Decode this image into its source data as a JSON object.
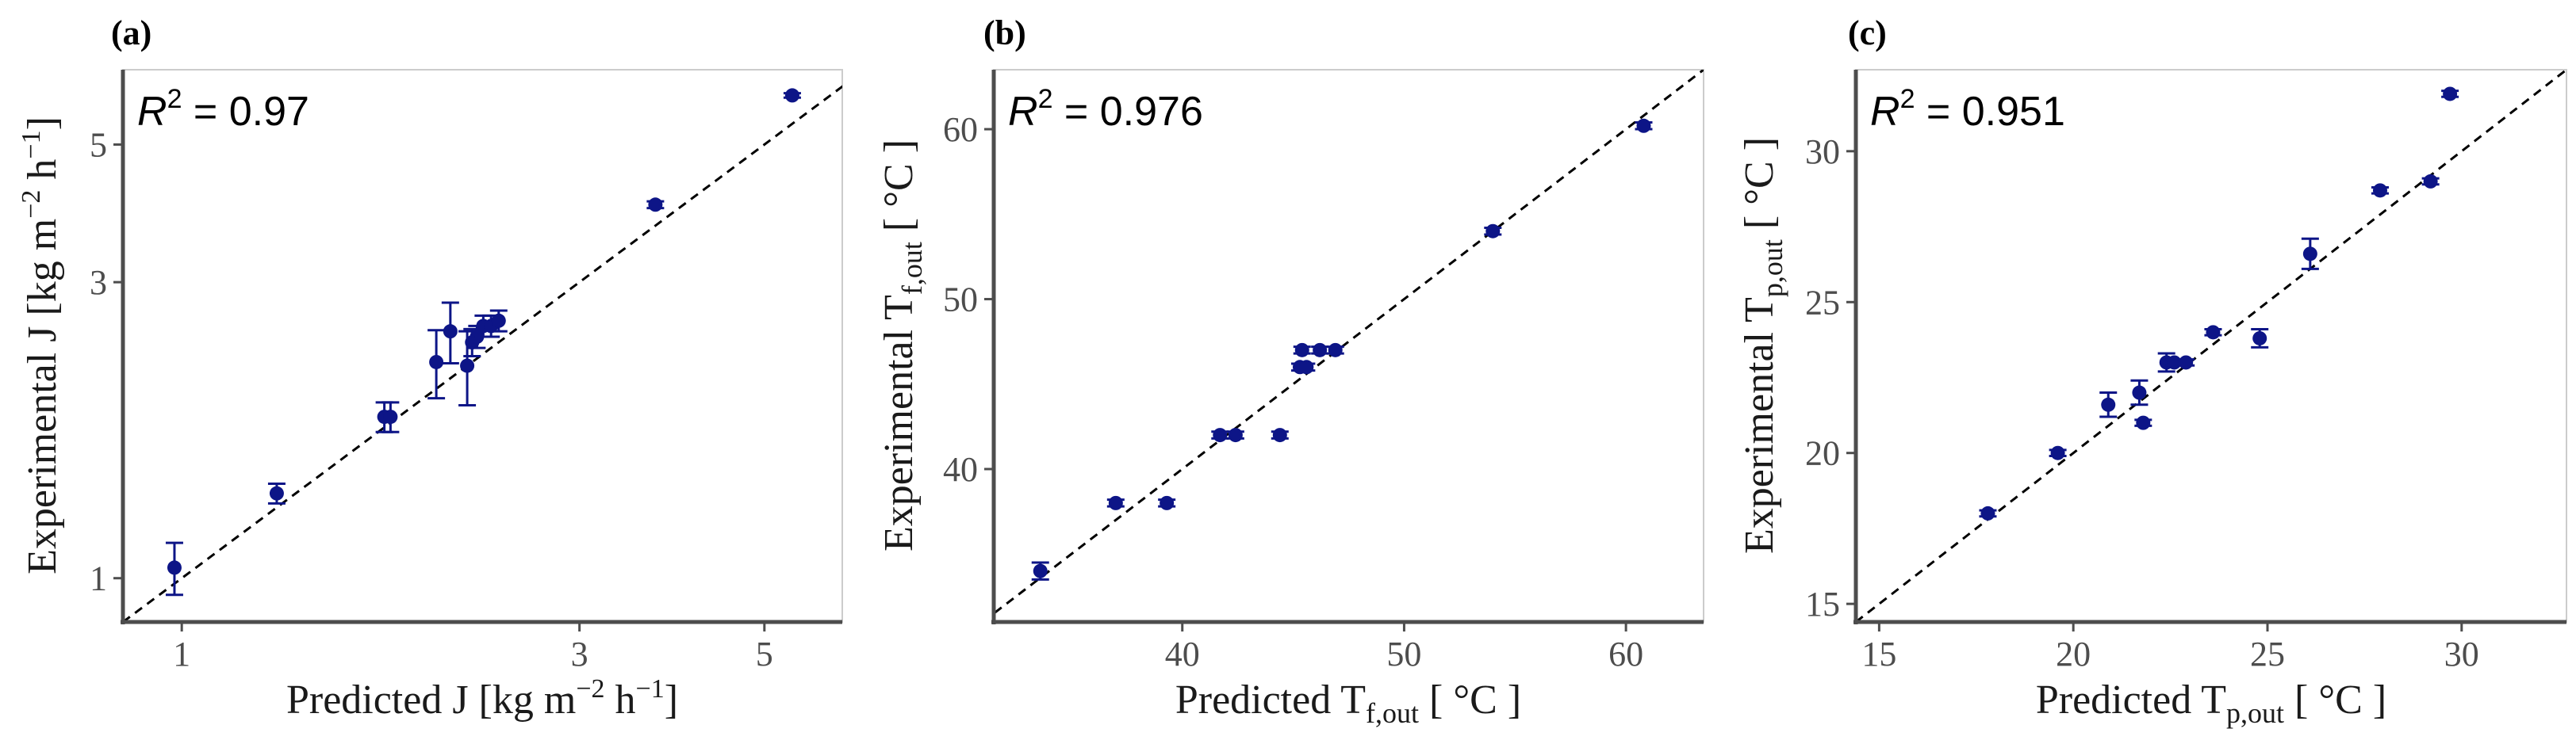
{
  "chart_data": [
    {
      "type": "scatter",
      "panel_label": "(a)",
      "scale": "log",
      "xlim": [
        0.85,
        6.2
      ],
      "ylim": [
        0.85,
        6.6
      ],
      "xticks": [
        1,
        3,
        5
      ],
      "yticks": [
        1,
        3,
        5
      ],
      "xlabel": {
        "main": "Predicted J [kg m",
        "sup1": "−2",
        "mid": " h",
        "sup2": "−1",
        "end": "]"
      },
      "ylabel": {
        "main": "Experimental J [kg m",
        "sup1": "−2",
        "mid": " h",
        "sup2": "−1",
        "end": "]"
      },
      "r2": {
        "prefix": "R",
        "exp": "2",
        "value": "= 0.97"
      },
      "identity_line": true,
      "points": [
        {
          "x": 0.98,
          "y": 1.04,
          "err": 0.1
        },
        {
          "x": 1.3,
          "y": 1.37,
          "err": 0.05
        },
        {
          "x": 1.75,
          "y": 1.82,
          "err": 0.1
        },
        {
          "x": 1.78,
          "y": 1.82,
          "err": 0.1
        },
        {
          "x": 2.02,
          "y": 2.23,
          "err": 0.28
        },
        {
          "x": 2.1,
          "y": 2.5,
          "err": 0.28
        },
        {
          "x": 2.2,
          "y": 2.2,
          "err": 0.3
        },
        {
          "x": 2.23,
          "y": 2.4,
          "err": 0.12
        },
        {
          "x": 2.26,
          "y": 2.45,
          "err": 0.1
        },
        {
          "x": 2.3,
          "y": 2.55,
          "err": 0.1
        },
        {
          "x": 2.35,
          "y": 2.55,
          "err": 0.1
        },
        {
          "x": 2.4,
          "y": 2.6,
          "err": 0.1
        },
        {
          "x": 3.7,
          "y": 4.0,
          "err": 0.05
        },
        {
          "x": 5.4,
          "y": 6.0,
          "err": 0.05
        }
      ]
    },
    {
      "type": "scatter",
      "panel_label": "(b)",
      "scale": "linear",
      "xlim": [
        31.5,
        63.5
      ],
      "ylim": [
        31.0,
        63.5
      ],
      "xticks": [
        40,
        50,
        60
      ],
      "yticks": [
        40,
        50,
        60
      ],
      "xlabel": {
        "main": "Predicted T",
        "sub": "f,out",
        "end": " [ °C ]"
      },
      "ylabel": {
        "main": "Experimental T",
        "sub": "f,out",
        "end": " [ °C ]"
      },
      "r2": {
        "prefix": "R",
        "exp": "2",
        "value": "= 0.976"
      },
      "identity_line": true,
      "points": [
        {
          "x": 33.6,
          "y": 34.0,
          "err": 0.5
        },
        {
          "x": 37.0,
          "y": 38.0,
          "err": 0.2
        },
        {
          "x": 39.3,
          "y": 38.0,
          "err": 0.2
        },
        {
          "x": 41.7,
          "y": 42.0,
          "err": 0.2
        },
        {
          "x": 42.4,
          "y": 42.0,
          "err": 0.2
        },
        {
          "x": 44.4,
          "y": 42.0,
          "err": 0.2
        },
        {
          "x": 45.3,
          "y": 46.0,
          "err": 0.2
        },
        {
          "x": 45.6,
          "y": 46.0,
          "err": 0.2
        },
        {
          "x": 45.4,
          "y": 47.0,
          "err": 0.2
        },
        {
          "x": 46.2,
          "y": 47.0,
          "err": 0.2
        },
        {
          "x": 46.9,
          "y": 47.0,
          "err": 0.2
        },
        {
          "x": 54.0,
          "y": 54.0,
          "err": 0.2
        },
        {
          "x": 60.8,
          "y": 60.2,
          "err": 0.2
        }
      ]
    },
    {
      "type": "scatter",
      "panel_label": "(c)",
      "scale": "linear",
      "xlim": [
        14.4,
        32.7
      ],
      "ylim": [
        14.4,
        32.7
      ],
      "xticks": [
        15,
        20,
        25,
        30
      ],
      "yticks": [
        15,
        20,
        25,
        30
      ],
      "xlabel": {
        "main": "Predicted T",
        "sub": "p,out",
        "end": " [ °C ]"
      },
      "ylabel": {
        "main": "Experimental T",
        "sub": "p,out",
        "end": " [ °C ]"
      },
      "r2": {
        "prefix": "R",
        "exp": "2",
        "value": "= 0.951"
      },
      "identity_line": true,
      "points": [
        {
          "x": 17.8,
          "y": 18.0,
          "err": 0.1
        },
        {
          "x": 19.6,
          "y": 20.0,
          "err": 0.1
        },
        {
          "x": 20.9,
          "y": 21.6,
          "err": 0.4
        },
        {
          "x": 21.7,
          "y": 22.0,
          "err": 0.4
        },
        {
          "x": 21.8,
          "y": 21.0,
          "err": 0.1
        },
        {
          "x": 22.4,
          "y": 23.0,
          "err": 0.3
        },
        {
          "x": 22.6,
          "y": 23.0,
          "err": 0.1
        },
        {
          "x": 22.9,
          "y": 23.0,
          "err": 0.1
        },
        {
          "x": 23.6,
          "y": 24.0,
          "err": 0.1
        },
        {
          "x": 24.8,
          "y": 23.8,
          "err": 0.3
        },
        {
          "x": 26.1,
          "y": 26.6,
          "err": 0.5
        },
        {
          "x": 27.9,
          "y": 28.7,
          "err": 0.1
        },
        {
          "x": 29.2,
          "y": 29.0,
          "err": 0.1
        },
        {
          "x": 29.7,
          "y": 31.9,
          "err": 0.1
        }
      ]
    }
  ],
  "colors": {
    "point": "#0d1587",
    "frame": "#cccccc",
    "axis": "#4d4d4d",
    "tick_text": "#4d4d4d",
    "line": "#000000"
  }
}
